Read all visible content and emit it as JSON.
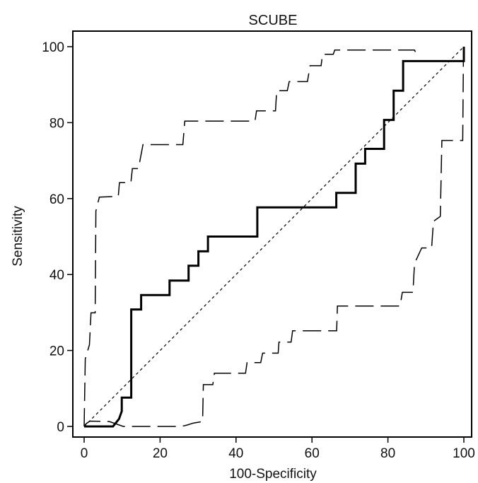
{
  "chart_data": {
    "type": "line",
    "title": "SCUBE",
    "xlabel": "100-Specificity",
    "ylabel": "Sensitivity",
    "xlim": [
      0,
      100
    ],
    "ylim": [
      0,
      100
    ],
    "x_ticks": [
      "0",
      "20",
      "40",
      "60",
      "80",
      "100"
    ],
    "y_ticks": [
      "0",
      "20",
      "40",
      "60",
      "80",
      "100"
    ],
    "grid": false,
    "legend": "none",
    "series": [
      {
        "style": "solid",
        "color": "#000000",
        "points": [
          [
            0,
            0
          ],
          [
            7.6,
            0
          ],
          [
            9.2,
            2
          ],
          [
            9.9,
            4
          ],
          [
            9.9,
            7.6
          ],
          [
            12.4,
            7.6
          ],
          [
            12.4,
            30.8
          ],
          [
            15,
            30.8
          ],
          [
            15,
            34.6
          ],
          [
            22.5,
            34.6
          ],
          [
            22.5,
            38.4
          ],
          [
            27.5,
            38.4
          ],
          [
            27.5,
            42.3
          ],
          [
            30.1,
            42.3
          ],
          [
            30.1,
            46.1
          ],
          [
            32.6,
            46.1
          ],
          [
            32.6,
            50
          ],
          [
            45.6,
            50
          ],
          [
            45.6,
            57.7
          ],
          [
            66.4,
            57.7
          ],
          [
            66.4,
            61.5
          ],
          [
            71.5,
            61.5
          ],
          [
            71.5,
            69.2
          ],
          [
            74,
            69.2
          ],
          [
            74,
            73.1
          ],
          [
            79,
            73.1
          ],
          [
            79,
            80.7
          ],
          [
            81.5,
            80.7
          ],
          [
            81.5,
            88.4
          ],
          [
            84,
            88.4
          ],
          [
            84,
            96.2
          ],
          [
            100,
            96.2
          ],
          [
            100,
            100
          ]
        ]
      },
      {
        "style": "dashed",
        "color": "#000000",
        "points": [
          [
            0,
            0
          ],
          [
            0.3,
            17.8
          ],
          [
            1.4,
            21.5
          ],
          [
            1.8,
            29.9
          ],
          [
            2.9,
            29.9
          ],
          [
            3.1,
            56.7
          ],
          [
            4,
            60.4
          ],
          [
            9,
            60.6
          ],
          [
            9.3,
            64.2
          ],
          [
            12.3,
            64.2
          ],
          [
            12.7,
            67.9
          ],
          [
            14.3,
            67.9
          ],
          [
            15.5,
            74.2
          ],
          [
            26,
            74.2
          ],
          [
            26.5,
            80.4
          ],
          [
            45,
            80.4
          ],
          [
            45.4,
            83.1
          ],
          [
            50.4,
            83.1
          ],
          [
            50.7,
            88.4
          ],
          [
            53.5,
            88.4
          ],
          [
            54,
            90.8
          ],
          [
            58.8,
            90.8
          ],
          [
            59.5,
            95
          ],
          [
            62.4,
            95
          ],
          [
            62.8,
            98
          ],
          [
            65.6,
            98
          ],
          [
            66,
            99.1
          ],
          [
            87,
            99.1
          ],
          [
            87.3,
            98.5
          ]
        ]
      },
      {
        "style": "dashed",
        "color": "#000000",
        "points": [
          [
            0,
            0
          ],
          [
            0.5,
            0.7
          ],
          [
            1.5,
            1.4
          ],
          [
            6.6,
            1.3
          ],
          [
            10.3,
            0
          ],
          [
            25.5,
            0
          ],
          [
            26.9,
            0.3
          ],
          [
            28.8,
            0.9
          ],
          [
            31.2,
            1.3
          ],
          [
            31.4,
            11
          ],
          [
            33.9,
            11
          ],
          [
            34.3,
            14
          ],
          [
            42.5,
            14
          ],
          [
            42.9,
            16.8
          ],
          [
            46.5,
            16.8
          ],
          [
            47,
            19.3
          ],
          [
            51.1,
            19.3
          ],
          [
            51.3,
            22.2
          ],
          [
            54.5,
            22.2
          ],
          [
            54.9,
            25.2
          ],
          [
            66.5,
            25.2
          ],
          [
            66.7,
            31.7
          ],
          [
            83.2,
            31.7
          ],
          [
            83.8,
            35.3
          ],
          [
            86.6,
            35.3
          ],
          [
            87,
            42.9
          ],
          [
            88.9,
            47
          ],
          [
            91.5,
            47
          ],
          [
            92,
            54
          ],
          [
            93.8,
            55.3
          ],
          [
            94.2,
            75.3
          ],
          [
            99.7,
            75.3
          ],
          [
            99.9,
            99.8
          ]
        ]
      },
      {
        "style": "dotted",
        "color": "#000000",
        "points": [
          [
            0,
            0
          ],
          [
            100,
            100
          ]
        ]
      }
    ]
  }
}
